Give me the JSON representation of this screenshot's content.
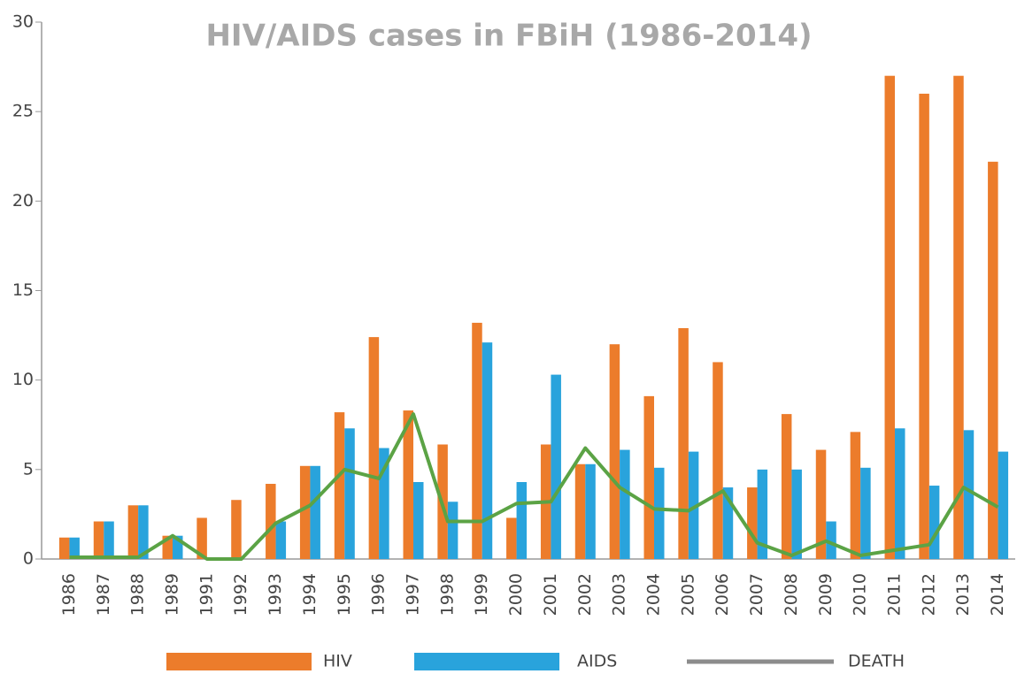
{
  "chart_data": {
    "type": "bar",
    "title": "HIV/AIDS cases in FBiH (1986-2014)",
    "categories": [
      "1986",
      "1987",
      "1988",
      "1989",
      "1991",
      "1992",
      "1993",
      "1994",
      "1995",
      "1996",
      "1997",
      "1998",
      "1999",
      "2000",
      "2001",
      "2002",
      "2003",
      "2004",
      "2005",
      "2006",
      "2007",
      "2008",
      "2009",
      "2010",
      "2011",
      "2012",
      "2013",
      "2014"
    ],
    "series": [
      {
        "name": "HIV",
        "type": "bar",
        "color": "#ec7c2b",
        "values": [
          1.2,
          2.1,
          3,
          1.3,
          2.3,
          3.3,
          4.2,
          5.2,
          8.2,
          12.4,
          8.3,
          6.4,
          13.2,
          2.3,
          6.4,
          5.3,
          12,
          9.1,
          12.9,
          11,
          4,
          8.1,
          6.1,
          7.1,
          27,
          26,
          27,
          22.2
        ]
      },
      {
        "name": "AIDS",
        "type": "bar",
        "color": "#29a3dc",
        "values": [
          1.2,
          2.1,
          3,
          1.3,
          0,
          0,
          2.1,
          5.2,
          7.3,
          6.2,
          4.3,
          3.2,
          12.1,
          4.3,
          10.3,
          5.3,
          6.1,
          5.1,
          6,
          4,
          5,
          5,
          2.1,
          5.1,
          7.3,
          4.1,
          7.2,
          6
        ]
      },
      {
        "name": "DEATH",
        "type": "line",
        "color": "#5ba345",
        "legend_color": "#8c8c8c",
        "values": [
          0.1,
          0.1,
          0.1,
          1.3,
          0,
          0,
          2,
          3,
          5,
          4.5,
          8.1,
          2.1,
          2.1,
          3.1,
          3.2,
          6.2,
          4,
          2.8,
          2.7,
          3.8,
          0.9,
          0.2,
          1,
          0.2,
          0.5,
          0.8,
          4,
          2.9
        ]
      }
    ],
    "ylim": [
      0,
      30
    ],
    "yticks": [
      0,
      5,
      10,
      15,
      20,
      25,
      30
    ],
    "legend": "bottom"
  }
}
